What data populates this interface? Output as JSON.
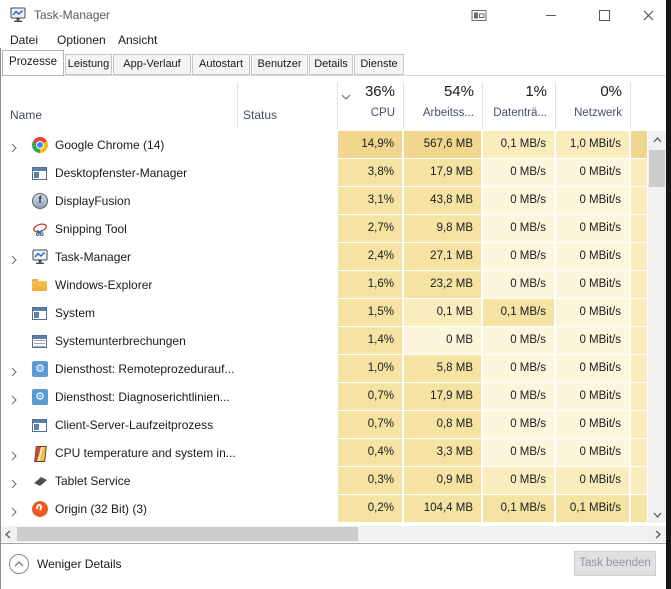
{
  "titlebar": {
    "title": "Task-Manager",
    "controls": [
      {
        "name": "monitor-icon"
      },
      {
        "name": "minimize-icon"
      },
      {
        "name": "maximize-icon"
      },
      {
        "name": "close-icon"
      }
    ]
  },
  "menu": {
    "items": [
      {
        "label": "Datei"
      },
      {
        "label": "Optionen"
      },
      {
        "label": "Ansicht"
      }
    ]
  },
  "tabs": {
    "items": [
      {
        "label": "Prozesse",
        "active": true
      },
      {
        "label": "Leistung",
        "active": false
      },
      {
        "label": "App-Verlauf",
        "active": false
      },
      {
        "label": "Autostart",
        "active": false
      },
      {
        "label": "Benutzer",
        "active": false
      },
      {
        "label": "Details",
        "active": false
      },
      {
        "label": "Dienste",
        "active": false
      }
    ]
  },
  "table": {
    "name_header": "Name",
    "status_header": "Status",
    "sort_icon": "chevron-down-icon",
    "stat_columns": [
      {
        "id": "cpu",
        "percent": "36%",
        "label": "CPU"
      },
      {
        "id": "mem",
        "percent": "54%",
        "label": "Arbeitss..."
      },
      {
        "id": "disk",
        "percent": "1%",
        "label": "Datenträ..."
      },
      {
        "id": "net",
        "percent": "0%",
        "label": "Netzwerk"
      }
    ],
    "rows": [
      {
        "name": "Google Chrome (14)",
        "icon": "chrome-icon",
        "expandable": true,
        "status": "",
        "cpu": "14,9%",
        "mem": "567,6 MB",
        "disk": "0,1 MB/s",
        "net": "1,0 MBit/s",
        "heat": [
          3,
          3,
          1,
          1,
          3
        ]
      },
      {
        "name": "Desktopfenster-Manager",
        "icon": "window-icon",
        "expandable": false,
        "status": "",
        "cpu": "3,8%",
        "mem": "17,9 MB",
        "disk": "0 MB/s",
        "net": "0 MBit/s",
        "heat": [
          2,
          2,
          0,
          0,
          1
        ]
      },
      {
        "name": "DisplayFusion",
        "icon": "displayfusion-icon",
        "expandable": false,
        "status": "",
        "cpu": "3,1%",
        "mem": "43,8 MB",
        "disk": "0 MB/s",
        "net": "0 MBit/s",
        "heat": [
          2,
          2,
          0,
          0,
          1
        ]
      },
      {
        "name": "Snipping Tool",
        "icon": "snipping-tool-icon",
        "expandable": false,
        "status": "",
        "cpu": "2,7%",
        "mem": "9,8 MB",
        "disk": "0 MB/s",
        "net": "0 MBit/s",
        "heat": [
          2,
          2,
          0,
          0,
          1
        ]
      },
      {
        "name": "Task-Manager",
        "icon": "task-manager-icon",
        "expandable": true,
        "status": "",
        "cpu": "2,4%",
        "mem": "27,1 MB",
        "disk": "0 MB/s",
        "net": "0 MBit/s",
        "heat": [
          2,
          2,
          0,
          0,
          1
        ]
      },
      {
        "name": "Windows-Explorer",
        "icon": "folder-icon",
        "expandable": false,
        "status": "",
        "cpu": "1,6%",
        "mem": "23,2 MB",
        "disk": "0 MB/s",
        "net": "0 MBit/s",
        "heat": [
          2,
          2,
          0,
          0,
          1
        ]
      },
      {
        "name": "System",
        "icon": "window-icon",
        "expandable": false,
        "status": "",
        "cpu": "1,5%",
        "mem": "0,1 MB",
        "disk": "0,1 MB/s",
        "net": "0 MBit/s",
        "heat": [
          2,
          1,
          2,
          0,
          1
        ]
      },
      {
        "name": "Systemunterbrechungen",
        "icon": "window-lines-icon",
        "expandable": false,
        "status": "",
        "cpu": "1,4%",
        "mem": "0 MB",
        "disk": "0 MB/s",
        "net": "0 MBit/s",
        "heat": [
          2,
          0,
          0,
          0,
          1
        ]
      },
      {
        "name": "Diensthost: Remoteprozedurauf...",
        "icon": "gear-icon",
        "expandable": true,
        "status": "",
        "cpu": "1,0%",
        "mem": "5,8 MB",
        "disk": "0 MB/s",
        "net": "0 MBit/s",
        "heat": [
          2,
          2,
          0,
          0,
          1
        ]
      },
      {
        "name": "Diensthost: Diagnoserichtlinien...",
        "icon": "gear-icon",
        "expandable": true,
        "status": "",
        "cpu": "0,7%",
        "mem": "17,9 MB",
        "disk": "0 MB/s",
        "net": "0 MBit/s",
        "heat": [
          2,
          2,
          0,
          0,
          1
        ]
      },
      {
        "name": "Client-Server-Laufzeitprozess",
        "icon": "window-icon",
        "expandable": false,
        "status": "",
        "cpu": "0,7%",
        "mem": "0,8 MB",
        "disk": "0 MB/s",
        "net": "0 MBit/s",
        "heat": [
          2,
          2,
          0,
          0,
          1
        ]
      },
      {
        "name": "CPU temperature and system in...",
        "icon": "thermometer-icon",
        "expandable": true,
        "status": "",
        "cpu": "0,4%",
        "mem": "3,3 MB",
        "disk": "0 MB/s",
        "net": "0 MBit/s",
        "heat": [
          2,
          2,
          0,
          0,
          1
        ]
      },
      {
        "name": "Tablet Service",
        "icon": "tablet-icon",
        "expandable": true,
        "status": "",
        "cpu": "0,3%",
        "mem": "0,9 MB",
        "disk": "0 MB/s",
        "net": "0 MBit/s",
        "heat": [
          2,
          2,
          1,
          1,
          1
        ]
      },
      {
        "name": "Origin (32 Bit) (3)",
        "icon": "origin-icon",
        "expandable": true,
        "status": "",
        "cpu": "0,2%",
        "mem": "104,4 MB",
        "disk": "0,1 MB/s",
        "net": "0,1 MBit/s",
        "heat": [
          2,
          2,
          2,
          2,
          2
        ]
      }
    ]
  },
  "heat_palette": [
    "#fdf6dc",
    "#f9edbd",
    "#f4e3a2",
    "#f0d78d"
  ],
  "footer": {
    "toggle_label": "Weniger Details",
    "toggle_icon": "chevron-up-circle-icon",
    "end_task_label": "Task beenden"
  }
}
